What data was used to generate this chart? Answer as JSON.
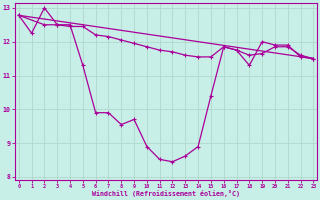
{
  "background_color": "#c8eee8",
  "line_color": "#aa0099",
  "grid_color": "#b0d8cc",
  "xlim": [
    -0.3,
    23.3
  ],
  "ylim": [
    7.9,
    13.15
  ],
  "yticks": [
    8,
    9,
    10,
    11,
    12,
    13
  ],
  "xticks": [
    0,
    1,
    2,
    3,
    4,
    5,
    6,
    7,
    8,
    9,
    10,
    11,
    12,
    13,
    14,
    15,
    16,
    17,
    18,
    19,
    20,
    21,
    22,
    23
  ],
  "xlabel": "Windchill (Refroidissement éolien,°C)",
  "line1_x": [
    0,
    1,
    2,
    3,
    4,
    5,
    6,
    7,
    8,
    9,
    10,
    11,
    12,
    13,
    14,
    15,
    16,
    17,
    18,
    19,
    20,
    21,
    22,
    23
  ],
  "line1_y": [
    12.78,
    12.25,
    13.0,
    12.5,
    12.5,
    11.3,
    9.9,
    9.9,
    9.55,
    9.7,
    8.9,
    8.52,
    8.45,
    8.62,
    8.9,
    10.4,
    11.85,
    11.75,
    11.3,
    12.0,
    11.9,
    11.9,
    11.55,
    11.5
  ],
  "line2_x": [
    0,
    2,
    3,
    4,
    5,
    6,
    7,
    8,
    9,
    10,
    11,
    12,
    13,
    14,
    15,
    16,
    17,
    18,
    19,
    20,
    21,
    22,
    23
  ],
  "line2_y": [
    12.78,
    12.5,
    12.5,
    12.45,
    12.45,
    12.2,
    12.15,
    12.05,
    11.95,
    11.85,
    11.75,
    11.7,
    11.6,
    11.55,
    11.55,
    11.85,
    11.75,
    11.6,
    11.65,
    11.85,
    11.85,
    11.6,
    11.5
  ],
  "line3_x": [
    0,
    23
  ],
  "line3_y": [
    12.78,
    11.5
  ]
}
